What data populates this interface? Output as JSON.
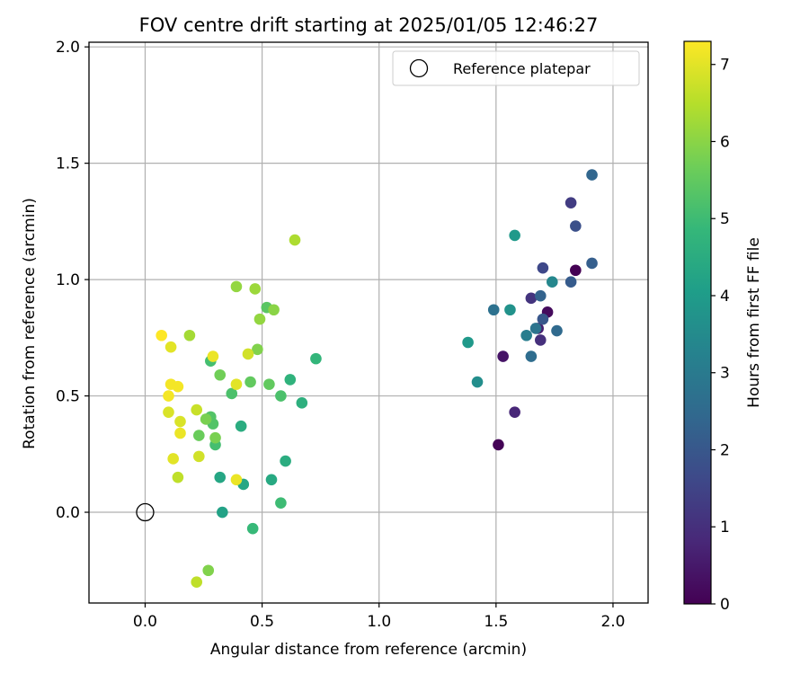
{
  "chart_data": {
    "type": "scatter",
    "title": "FOV centre drift starting at 2025/01/05 12:46:27",
    "xlabel": "Angular distance from reference (arcmin)",
    "ylabel": "Rotation from reference (arcmin)",
    "xlim": [
      -0.24,
      2.15
    ],
    "ylim": [
      -0.39,
      2.02
    ],
    "xticks": [
      0.0,
      0.5,
      1.0,
      1.5,
      2.0
    ],
    "xtick_labels": [
      "0.0",
      "0.5",
      "1.0",
      "1.5",
      "2.0"
    ],
    "yticks": [
      0.0,
      0.5,
      1.0,
      1.5,
      2.0
    ],
    "ytick_labels": [
      "0.0",
      "0.5",
      "1.0",
      "1.5",
      "2.0"
    ],
    "grid": true,
    "legend": {
      "position": "top-right",
      "entries": [
        {
          "label": "Reference platepar",
          "marker": "open-circle",
          "x": 0.0,
          "y": 0.0
        }
      ]
    },
    "colorbar": {
      "label": "Hours from first FF file",
      "min": 0,
      "max": 7.3,
      "ticks": [
        0,
        1,
        2,
        3,
        4,
        5,
        6,
        7
      ],
      "tick_labels": [
        "0",
        "1",
        "2",
        "3",
        "4",
        "5",
        "6",
        "7"
      ],
      "colormap": "viridis",
      "colors": [
        "#440154",
        "#482878",
        "#3e4989",
        "#31688e",
        "#26828e",
        "#1f9e89",
        "#35b779",
        "#6ece58",
        "#b5de2b",
        "#fde725"
      ]
    },
    "series": [
      {
        "points": [
          {
            "x": 1.84,
            "y": 1.04,
            "c": 0.0
          },
          {
            "x": 1.51,
            "y": 0.29,
            "c": 0.05
          },
          {
            "x": 1.72,
            "y": 0.86,
            "c": 0.2
          },
          {
            "x": 1.53,
            "y": 0.67,
            "c": 0.4
          },
          {
            "x": 1.68,
            "y": 0.79,
            "c": 0.6
          },
          {
            "x": 1.58,
            "y": 0.43,
            "c": 0.8
          },
          {
            "x": 1.69,
            "y": 0.74,
            "c": 1.0
          },
          {
            "x": 1.65,
            "y": 0.92,
            "c": 1.1
          },
          {
            "x": 1.82,
            "y": 1.33,
            "c": 1.3
          },
          {
            "x": 1.7,
            "y": 1.05,
            "c": 1.6
          },
          {
            "x": 1.84,
            "y": 1.23,
            "c": 1.8
          },
          {
            "x": 1.7,
            "y": 0.83,
            "c": 2.0
          },
          {
            "x": 1.91,
            "y": 1.07,
            "c": 2.2
          },
          {
            "x": 1.82,
            "y": 0.99,
            "c": 2.1
          },
          {
            "x": 1.69,
            "y": 0.93,
            "c": 2.3
          },
          {
            "x": 1.76,
            "y": 0.78,
            "c": 2.5
          },
          {
            "x": 1.91,
            "y": 1.45,
            "c": 2.4
          },
          {
            "x": 1.49,
            "y": 0.87,
            "c": 2.7
          },
          {
            "x": 1.65,
            "y": 0.67,
            "c": 2.6
          },
          {
            "x": 1.67,
            "y": 0.79,
            "c": 2.8
          },
          {
            "x": 1.63,
            "y": 0.76,
            "c": 3.1
          },
          {
            "x": 1.74,
            "y": 0.99,
            "c": 3.4
          },
          {
            "x": 1.56,
            "y": 0.87,
            "c": 3.7
          },
          {
            "x": 1.42,
            "y": 0.56,
            "c": 3.6
          },
          {
            "x": 1.38,
            "y": 0.73,
            "c": 3.9
          },
          {
            "x": 1.58,
            "y": 1.19,
            "c": 3.9
          },
          {
            "x": 0.33,
            "y": 0.0,
            "c": 4.2
          },
          {
            "x": 0.32,
            "y": 0.15,
            "c": 4.3
          },
          {
            "x": 0.42,
            "y": 0.12,
            "c": 4.3
          },
          {
            "x": 0.54,
            "y": 0.14,
            "c": 4.4
          },
          {
            "x": 0.6,
            "y": 0.22,
            "c": 4.5
          },
          {
            "x": 0.41,
            "y": 0.37,
            "c": 4.5
          },
          {
            "x": 0.67,
            "y": 0.47,
            "c": 4.6
          },
          {
            "x": 0.62,
            "y": 0.57,
            "c": 4.7
          },
          {
            "x": 0.73,
            "y": 0.66,
            "c": 4.8
          },
          {
            "x": 0.46,
            "y": -0.07,
            "c": 4.9
          },
          {
            "x": 0.58,
            "y": 0.04,
            "c": 5.0
          },
          {
            "x": 0.28,
            "y": 0.65,
            "c": 5.1
          },
          {
            "x": 0.3,
            "y": 0.29,
            "c": 5.1
          },
          {
            "x": 0.37,
            "y": 0.51,
            "c": 5.2
          },
          {
            "x": 0.58,
            "y": 0.5,
            "c": 5.2
          },
          {
            "x": 0.29,
            "y": 0.38,
            "c": 5.3
          },
          {
            "x": 0.28,
            "y": 0.41,
            "c": 5.3
          },
          {
            "x": 0.52,
            "y": 0.88,
            "c": 5.4
          },
          {
            "x": 0.53,
            "y": 0.55,
            "c": 5.5
          },
          {
            "x": 0.45,
            "y": 0.56,
            "c": 5.5
          },
          {
            "x": 0.23,
            "y": 0.33,
            "c": 5.6
          },
          {
            "x": 0.32,
            "y": 0.59,
            "c": 5.7
          },
          {
            "x": 0.3,
            "y": 0.32,
            "c": 5.8
          },
          {
            "x": 0.26,
            "y": 0.4,
            "c": 5.8
          },
          {
            "x": 0.48,
            "y": 0.7,
            "c": 5.9
          },
          {
            "x": 0.27,
            "y": -0.25,
            "c": 5.9
          },
          {
            "x": 0.55,
            "y": 0.87,
            "c": 6.0
          },
          {
            "x": 0.39,
            "y": 0.97,
            "c": 6.1
          },
          {
            "x": 0.49,
            "y": 0.83,
            "c": 6.1
          },
          {
            "x": 0.47,
            "y": 0.96,
            "c": 6.2
          },
          {
            "x": 0.19,
            "y": 0.76,
            "c": 6.3
          },
          {
            "x": 0.64,
            "y": 1.17,
            "c": 6.4
          },
          {
            "x": 0.14,
            "y": 0.15,
            "c": 6.6
          },
          {
            "x": 0.22,
            "y": -0.3,
            "c": 6.6
          },
          {
            "x": 0.22,
            "y": 0.44,
            "c": 6.7
          },
          {
            "x": 0.44,
            "y": 0.68,
            "c": 6.8
          },
          {
            "x": 0.23,
            "y": 0.24,
            "c": 6.8
          },
          {
            "x": 0.1,
            "y": 0.43,
            "c": 6.9
          },
          {
            "x": 0.15,
            "y": 0.39,
            "c": 6.9
          },
          {
            "x": 0.39,
            "y": 0.55,
            "c": 7.0
          },
          {
            "x": 0.11,
            "y": 0.71,
            "c": 7.0
          },
          {
            "x": 0.12,
            "y": 0.23,
            "c": 7.0
          },
          {
            "x": 0.15,
            "y": 0.34,
            "c": 7.1
          },
          {
            "x": 0.29,
            "y": 0.67,
            "c": 7.1
          },
          {
            "x": 0.39,
            "y": 0.14,
            "c": 7.1
          },
          {
            "x": 0.14,
            "y": 0.54,
            "c": 7.2
          },
          {
            "x": 0.11,
            "y": 0.55,
            "c": 7.2
          },
          {
            "x": 0.1,
            "y": 0.5,
            "c": 7.2
          },
          {
            "x": 0.07,
            "y": 0.76,
            "c": 7.3
          }
        ]
      }
    ]
  }
}
